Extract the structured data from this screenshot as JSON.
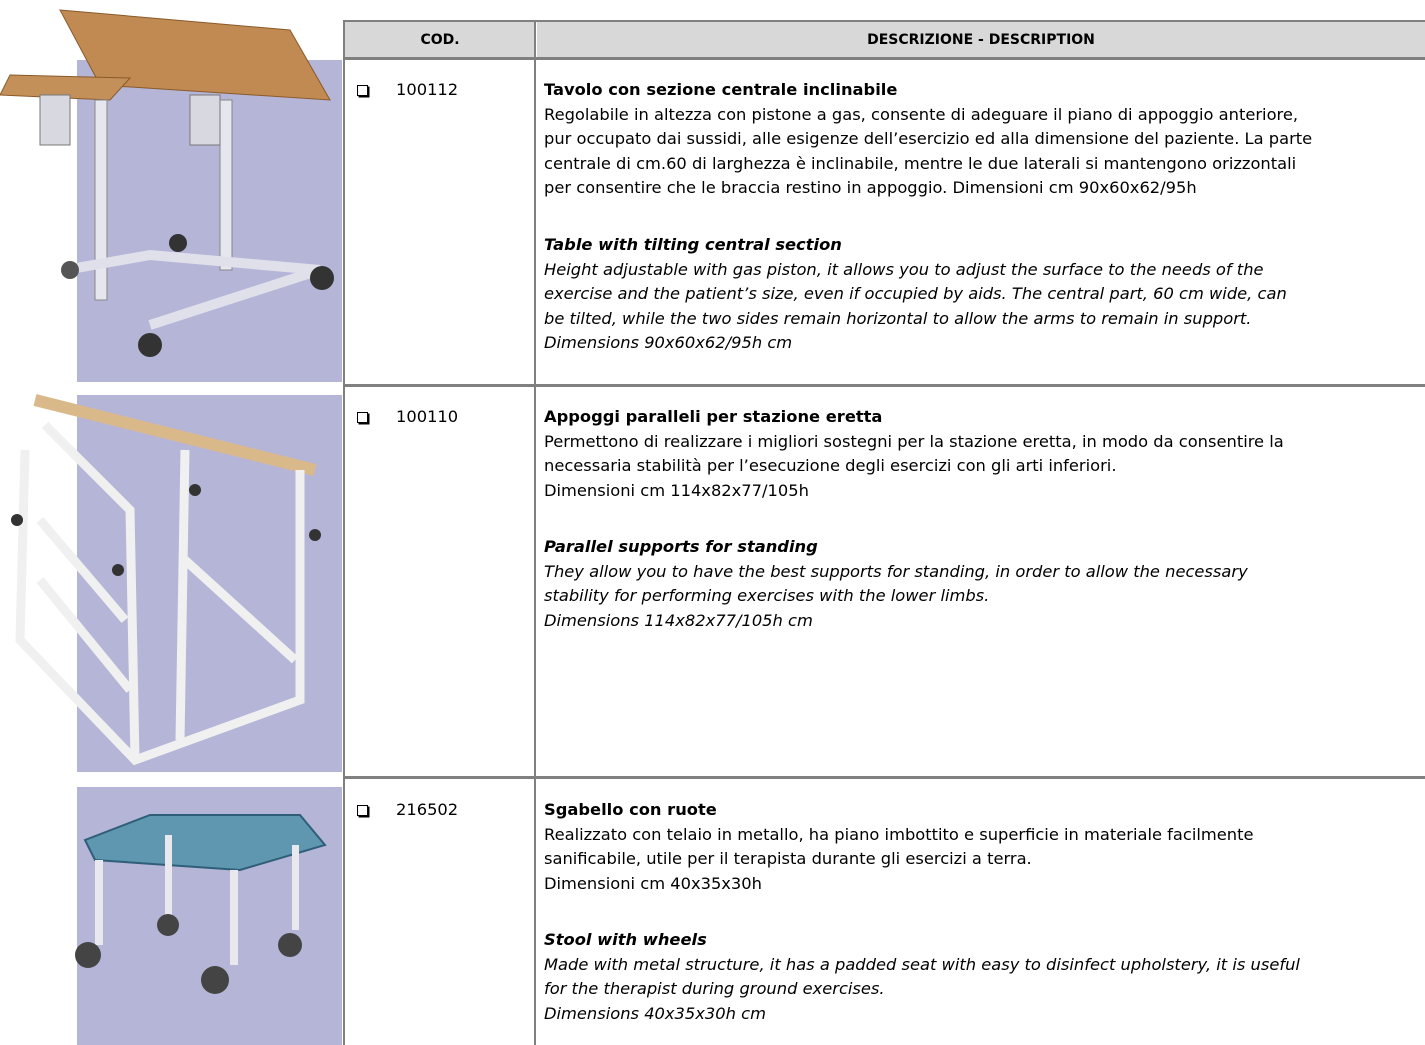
{
  "table": {
    "header": {
      "code": "COD.",
      "description": "DESCRIZIONE - DESCRIPTION"
    },
    "rows": [
      {
        "code": "100112",
        "title_it": "Tavolo con sezione centrale inclinabile",
        "desc_it": [
          "Regolabile in altezza con pistone a gas, consente di adeguare il piano di appoggio anteriore,",
          "pur occupato dai sussidi, alle esigenze dell’esercizio ed alla dimensione del paziente. La parte",
          "centrale di cm.60 di larghezza è inclinabile, mentre le due laterali si mantengono orizzontali",
          "per consentire che le braccia restino in appoggio. Dimensioni cm 90x60x62/95h"
        ],
        "title_en": "Table with tilting central section",
        "desc_en": [
          "Height adjustable with gas piston, it allows you to adjust the surface to the needs of the",
          "exercise and the patient’s size, even if occupied by aids. The central part, 60 cm wide, can",
          "be tilted, while the two sides remain horizontal to allow the arms to remain in support.",
          "Dimensions 90x60x62/95h cm"
        ]
      },
      {
        "code": "100110",
        "title_it": "Appoggi paralleli per stazione eretta",
        "desc_it": [
          "Permettono di realizzare i migliori sostegni per la stazione eretta, in modo da consentire la",
          "necessaria stabilità per l’esecuzione degli esercizi con gli arti inferiori.",
          "Dimensioni cm 114x82x77/105h"
        ],
        "title_en": "Parallel supports for standing",
        "desc_en": [
          "They allow you to have the best supports for standing, in order to allow the necessary",
          "stability for performing exercises with the lower limbs.",
          "Dimensions 114x82x77/105h cm"
        ]
      },
      {
        "code": "216502",
        "title_it": "Sgabello con ruote",
        "desc_it": [
          "Realizzato con telaio in metallo, ha piano imbottito e superficie in materiale facilmente",
          "sanificabile, utile per il terapista durante gli esercizi a terra.",
          "Dimensioni cm 40x35x30h"
        ],
        "title_en": "Stool with wheels",
        "desc_en": [
          "Made with metal structure, it has a padded seat with easy to disinfect upholstery, it is useful",
          "for the therapist during ground exercises.",
          "Dimensions 40x35x30h cm"
        ]
      }
    ]
  }
}
